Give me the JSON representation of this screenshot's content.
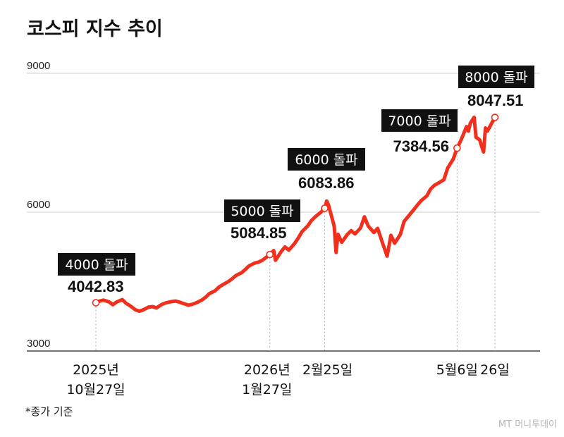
{
  "chart_data": {
    "type": "line",
    "title": "코스피 지수 추이",
    "ylim": [
      3000,
      9000
    ],
    "yticks": [
      "9000",
      "6000",
      "3000"
    ],
    "grid": true,
    "legend": "none",
    "line_color": "#f0301c",
    "x_tick_labels": [
      {
        "date": "2025-10-27",
        "lines": [
          "2025년",
          "10월27일"
        ]
      },
      {
        "date": "2026-01-27",
        "lines": [
          "2026년",
          "1월27일"
        ]
      },
      {
        "date": "2026-02-25",
        "lines": [
          "2월25일"
        ]
      },
      {
        "date": "2026-05-06",
        "lines": [
          "5월6일"
        ]
      },
      {
        "date": "2026-05-26",
        "lines": [
          "26일"
        ]
      }
    ],
    "annotations": [
      {
        "date": "2025-10-27",
        "label": "4000 돌파",
        "value_text": "4042.83"
      },
      {
        "date": "2026-01-27",
        "label": "5000 돌파",
        "value_text": "5084.85"
      },
      {
        "date": "2026-02-25",
        "label": "6000 돌파",
        "value_text": "6083.86"
      },
      {
        "date": "2026-05-06",
        "label": "7000 돌파",
        "value_text": "7384.56"
      },
      {
        "date": "2026-05-26",
        "label": "8000 돌파",
        "value_text": "8047.51"
      }
    ],
    "series": [
      {
        "values": [
          [
            "2025-10-27",
            4042.83
          ],
          [
            "2025-10-29",
            4080
          ],
          [
            "2025-10-31",
            4100
          ],
          [
            "2025-11-03",
            4060
          ],
          [
            "2025-11-05",
            4000
          ],
          [
            "2025-11-07",
            4060
          ],
          [
            "2025-11-10",
            4110
          ],
          [
            "2025-11-12",
            4030
          ],
          [
            "2025-11-14",
            3980
          ],
          [
            "2025-11-17",
            3890
          ],
          [
            "2025-11-19",
            3860
          ],
          [
            "2025-11-21",
            3890
          ],
          [
            "2025-11-24",
            3950
          ],
          [
            "2025-11-26",
            3960
          ],
          [
            "2025-11-28",
            3930
          ],
          [
            "2025-12-01",
            4010
          ],
          [
            "2025-12-03",
            4040
          ],
          [
            "2025-12-05",
            4060
          ],
          [
            "2025-12-08",
            4080
          ],
          [
            "2025-12-10",
            4060
          ],
          [
            "2025-12-12",
            4030
          ],
          [
            "2025-12-15",
            3990
          ],
          [
            "2025-12-17",
            4010
          ],
          [
            "2025-12-19",
            4040
          ],
          [
            "2025-12-22",
            4100
          ],
          [
            "2025-12-24",
            4160
          ],
          [
            "2025-12-26",
            4240
          ],
          [
            "2025-12-29",
            4300
          ],
          [
            "2025-12-31",
            4380
          ],
          [
            "2026-01-02",
            4430
          ],
          [
            "2026-01-05",
            4500
          ],
          [
            "2026-01-07",
            4560
          ],
          [
            "2026-01-09",
            4630
          ],
          [
            "2026-01-12",
            4690
          ],
          [
            "2026-01-14",
            4760
          ],
          [
            "2026-01-16",
            4840
          ],
          [
            "2026-01-19",
            4900
          ],
          [
            "2026-01-21",
            4920
          ],
          [
            "2026-01-23",
            4960
          ],
          [
            "2026-01-27",
            5084.85
          ],
          [
            "2026-01-29",
            5170
          ],
          [
            "2026-01-30",
            4960
          ],
          [
            "2026-02-02",
            5150
          ],
          [
            "2026-02-04",
            5250
          ],
          [
            "2026-02-06",
            5180
          ],
          [
            "2026-02-09",
            5320
          ],
          [
            "2026-02-11",
            5440
          ],
          [
            "2026-02-13",
            5580
          ],
          [
            "2026-02-16",
            5700
          ],
          [
            "2026-02-18",
            5820
          ],
          [
            "2026-02-20",
            5900
          ],
          [
            "2026-02-23",
            6000
          ],
          [
            "2026-02-25",
            6083.86
          ],
          [
            "2026-02-26",
            6240
          ],
          [
            "2026-02-27",
            6160
          ],
          [
            "2026-03-02",
            5700
          ],
          [
            "2026-03-03",
            5130
          ],
          [
            "2026-03-04",
            5520
          ],
          [
            "2026-03-06",
            5350
          ],
          [
            "2026-03-09",
            5520
          ],
          [
            "2026-03-11",
            5600
          ],
          [
            "2026-03-13",
            5530
          ],
          [
            "2026-03-16",
            5660
          ],
          [
            "2026-03-18",
            5900
          ],
          [
            "2026-03-20",
            5700
          ],
          [
            "2026-03-23",
            5560
          ],
          [
            "2026-03-25",
            5650
          ],
          [
            "2026-03-27",
            5400
          ],
          [
            "2026-03-30",
            5050
          ],
          [
            "2026-04-01",
            5500
          ],
          [
            "2026-04-03",
            5330
          ],
          [
            "2026-04-06",
            5520
          ],
          [
            "2026-04-08",
            5800
          ],
          [
            "2026-04-10",
            5900
          ],
          [
            "2026-04-13",
            6050
          ],
          [
            "2026-04-15",
            6150
          ],
          [
            "2026-04-17",
            6250
          ],
          [
            "2026-04-20",
            6350
          ],
          [
            "2026-04-22",
            6500
          ],
          [
            "2026-04-24",
            6580
          ],
          [
            "2026-04-27",
            6650
          ],
          [
            "2026-04-29",
            6700
          ],
          [
            "2026-05-01",
            6950
          ],
          [
            "2026-05-04",
            7150
          ],
          [
            "2026-05-06",
            7384.56
          ],
          [
            "2026-05-08",
            7550
          ],
          [
            "2026-05-11",
            7850
          ],
          [
            "2026-05-12",
            7750
          ],
          [
            "2026-05-13",
            7920
          ],
          [
            "2026-05-15",
            8050
          ],
          [
            "2026-05-16",
            7620
          ],
          [
            "2026-05-18",
            7560
          ],
          [
            "2026-05-19",
            7420
          ],
          [
            "2026-05-20",
            7300
          ],
          [
            "2026-05-21",
            7820
          ],
          [
            "2026-05-22",
            7750
          ],
          [
            "2026-05-26",
            8047.51
          ]
        ]
      }
    ]
  },
  "footnote": "*종가 기준",
  "credit": "MT 머니투데이"
}
